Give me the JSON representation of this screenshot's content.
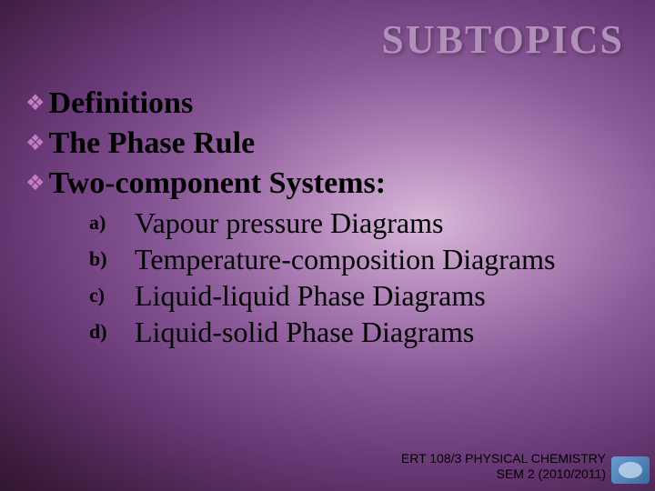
{
  "title": "SUBTOPICS",
  "topItems": [
    {
      "text": "Definitions"
    },
    {
      "text": "The Phase Rule"
    },
    {
      "text": "Two-component Systems:"
    }
  ],
  "subItems": [
    {
      "label": "a)",
      "text": "Vapour pressure Diagrams"
    },
    {
      "label": "b)",
      "text": "Temperature-composition Diagrams"
    },
    {
      "label": "c)",
      "text": "Liquid-liquid Phase Diagrams"
    },
    {
      "label": "d)",
      "text": "Liquid-solid Phase Diagrams"
    }
  ],
  "footer": {
    "line1": "ERT 108/3 PHYSICAL CHEMISTRY",
    "line2": "SEM 2 (2010/2011)"
  },
  "colors": {
    "bullet": "#c47dc4",
    "title": "#b090b8",
    "text": "#000000"
  }
}
